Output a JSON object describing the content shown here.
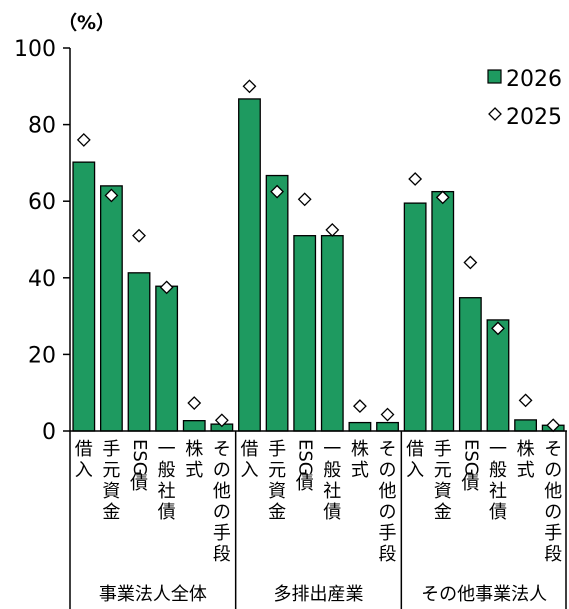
{
  "chart_data": {
    "type": "bar",
    "unit_label": "（%）",
    "ylim": [
      0,
      100
    ],
    "yticks": [
      0,
      20,
      40,
      60,
      80,
      100
    ],
    "groups": [
      {
        "label": "事業法人全体",
        "categories": [
          "借入",
          "手元資金",
          "ESG債",
          "一般社債",
          "株式",
          "その他の手段"
        ]
      },
      {
        "label": "多排出産業",
        "categories": [
          "借入",
          "手元資金",
          "ESG債",
          "一般社債",
          "株式",
          "その他の手段"
        ]
      },
      {
        "label": "その他事業法人",
        "categories": [
          "借入",
          "手元資金",
          "ESG債",
          "一般社債",
          "株式",
          "その他の手段"
        ]
      }
    ],
    "series": [
      {
        "name": "2026",
        "type": "bar",
        "color": "#1e9a60",
        "values": [
          70.2,
          64.0,
          41.3,
          37.8,
          2.7,
          1.8,
          86.7,
          66.7,
          51.0,
          51.0,
          2.2,
          2.2,
          59.5,
          62.5,
          34.8,
          29.0,
          2.9,
          1.5
        ]
      },
      {
        "name": "2025",
        "type": "marker",
        "marker": "diamond",
        "values": [
          76.0,
          61.5,
          51.0,
          37.5,
          7.3,
          2.8,
          90.0,
          62.5,
          60.5,
          52.5,
          6.5,
          4.3,
          65.8,
          61.0,
          44.0,
          26.8,
          8.0,
          1.5
        ]
      }
    ],
    "legend": {
      "position": "top-right",
      "entries": [
        "2026",
        "2025"
      ]
    }
  }
}
